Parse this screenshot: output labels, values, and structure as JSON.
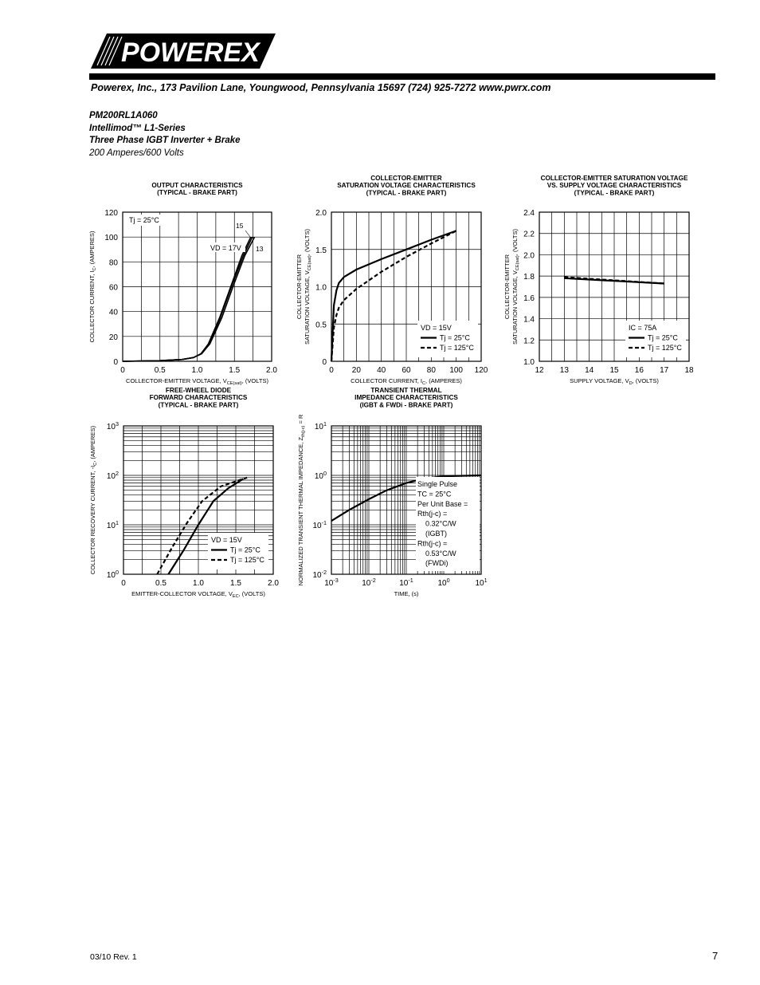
{
  "header": {
    "logo_text": "POWEREX",
    "address": "Powerex, Inc., 173 Pavilion Lane, Youngwood, Pennsylvania  15697   (724) 925-7272  www.pwrx.com"
  },
  "product": {
    "part_number": "PM200RL1A060",
    "series": "Intellimod™  L1-Series",
    "description": "Three Phase IGBT Inverter + Brake",
    "rating": "200 Amperes/600 Volts"
  },
  "footer": {
    "revision": "03/10 Rev. 1",
    "page": "7"
  },
  "chart_data": [
    {
      "id": "output",
      "type": "line",
      "title_lines": [
        "OUTPUT CHARACTERISTICS",
        "(TYPICAL - BRAKE PART)"
      ],
      "xlabel": "COLLECTOR-EMITTER VOLTAGE, V_CE(sat), (VOLTS)",
      "ylabel": "COLLECTOR CURRENT, I_C, (AMPERES)",
      "xlim": [
        0,
        2.0
      ],
      "ylim": [
        0,
        120
      ],
      "xticks": [
        "0",
        "0.5",
        "1.0",
        "1.5",
        "2.0"
      ],
      "yticks": [
        "0",
        "20",
        "40",
        "60",
        "80",
        "100",
        "120"
      ],
      "annotations": [
        "Tj = 25°C",
        "VD = 17V",
        "15",
        "13"
      ],
      "series": [
        {
          "name": "VD = 17V",
          "x": [
            0,
            0.5,
            0.8,
            0.95,
            1.05,
            1.15,
            1.3,
            1.45,
            1.6,
            1.72
          ],
          "y": [
            0,
            0.5,
            1.5,
            3,
            6,
            14,
            35,
            60,
            85,
            100
          ]
        },
        {
          "name": "15",
          "x": [
            0,
            0.5,
            0.8,
            0.95,
            1.05,
            1.16,
            1.31,
            1.46,
            1.62,
            1.74
          ],
          "y": [
            0,
            0.5,
            1.5,
            3,
            6,
            14,
            35,
            60,
            85,
            100
          ]
        },
        {
          "name": "13",
          "x": [
            0,
            0.5,
            0.8,
            0.95,
            1.06,
            1.17,
            1.33,
            1.48,
            1.64,
            1.77
          ],
          "y": [
            0,
            0.5,
            1.5,
            3,
            6,
            14,
            35,
            60,
            85,
            100
          ]
        }
      ]
    },
    {
      "id": "vce_ic",
      "type": "line",
      "title_lines": [
        "COLLECTOR-EMITTER",
        "SATURATION VOLTAGE CHARACTERISTICS",
        "(TYPICAL - BRAKE PART)"
      ],
      "xlabel": "COLLECTOR CURRENT, I_C, (AMPERES)",
      "ylabel_lines": [
        "COLLECTOR-EMITTER",
        "SATURATION VOLTAGE, V_CE(sat), (VOLTS)"
      ],
      "xlim": [
        0,
        120
      ],
      "ylim": [
        0,
        2.0
      ],
      "xticks": [
        "0",
        "20",
        "40",
        "60",
        "80",
        "100",
        "120"
      ],
      "yticks": [
        "0",
        "0.5",
        "1.0",
        "1.5",
        "2.0"
      ],
      "legend": {
        "lines": [
          "VD = 15V",
          "Tj = 25°C",
          "Tj = 125°C"
        ]
      },
      "series": [
        {
          "name": "Tj = 25°C",
          "x": [
            0,
            2,
            4,
            6,
            10,
            20,
            40,
            60,
            80,
            100
          ],
          "y": [
            0,
            0.75,
            0.95,
            1.05,
            1.13,
            1.23,
            1.37,
            1.5,
            1.63,
            1.75
          ]
        },
        {
          "name": "Tj = 125°C",
          "x": [
            0,
            2,
            4,
            6,
            10,
            20,
            40,
            60,
            80,
            100
          ],
          "y": [
            0,
            0.45,
            0.62,
            0.72,
            0.82,
            0.97,
            1.2,
            1.4,
            1.58,
            1.75
          ]
        }
      ]
    },
    {
      "id": "vce_vd",
      "type": "line",
      "title_lines": [
        "COLLECTOR-EMITTER SATURATION VOLTAGE",
        "VS. SUPPLY VOLTAGE CHARACTERISTICS",
        "(TYPICAL - BRAKE PART)"
      ],
      "xlabel": "SUPPLY VOLTAGE, V_D, (VOLTS)",
      "ylabel_lines": [
        "COLLECTOR-EMITTER",
        "SATURATION VOLTAGE, V_CE(sat), (VOLTS)"
      ],
      "xlim": [
        12,
        18
      ],
      "ylim": [
        1.0,
        2.4
      ],
      "xticks": [
        "12",
        "13",
        "14",
        "15",
        "16",
        "17",
        "18"
      ],
      "yticks": [
        "1.0",
        "1.2",
        "1.4",
        "1.6",
        "1.8",
        "2.0",
        "2.2",
        "2.4"
      ],
      "legend": {
        "lines": [
          "IC = 75A",
          "Tj = 25°C",
          "Tj = 125°C"
        ]
      },
      "series": [
        {
          "name": "Tj = 25°C",
          "x": [
            13,
            17
          ],
          "y": [
            1.78,
            1.73
          ]
        },
        {
          "name": "Tj = 125°C",
          "x": [
            13,
            17
          ],
          "y": [
            1.79,
            1.73
          ]
        }
      ]
    },
    {
      "id": "diode",
      "type": "line",
      "title_lines": [
        "FREE-WHEEL DIODE",
        "FORWARD CHARACTERISTICS",
        "(TYPICAL - BRAKE PART)"
      ],
      "xlabel": "EMITTER-COLLECTOR VOLTAGE, V_EC, (VOLTS)",
      "ylabel": "COLLECTOR RECOVERY CURRENT, -I_C, (AMPERES)",
      "xlim": [
        0,
        2.0
      ],
      "ylim_log10": [
        0,
        3
      ],
      "xticks": [
        "0",
        "0.5",
        "1.0",
        "1.5",
        "2.0"
      ],
      "yticks": [
        "10^0",
        "10^1",
        "10^2",
        "10^3"
      ],
      "legend": {
        "lines": [
          "VD = 15V",
          "Tj = 25°C",
          "Tj = 125°C"
        ]
      },
      "series": [
        {
          "name": "Tj = 25°C",
          "x": [
            0.6,
            0.8,
            1.0,
            1.2,
            1.4,
            1.6
          ],
          "y": [
            1,
            3,
            10,
            30,
            55,
            85
          ]
        },
        {
          "name": "Tj = 125°C",
          "x": [
            0.45,
            0.65,
            0.85,
            1.05,
            1.3,
            1.65
          ],
          "y": [
            1,
            3.5,
            11,
            30,
            60,
            90
          ]
        }
      ]
    },
    {
      "id": "thermal",
      "type": "line",
      "title_lines": [
        "TRANSIENT THERMAL",
        "IMPEDANCE CHARACTERISTICS",
        "(IGBT & FWDi - BRAKE PART)"
      ],
      "xlabel": "TIME, (s)",
      "ylabel": "NORMALIZED TRANSIENT THERMAL IMPEDANCE, Z_th(j-c) = R_th • (NORMALIZED VALUE)",
      "xlim_log10": [
        -3,
        1
      ],
      "ylim_log10": [
        -2,
        1
      ],
      "xticks": [
        "10^-3",
        "10^-2",
        "10^-1",
        "10^0",
        "10^1"
      ],
      "yticks": [
        "10^-2",
        "10^-1",
        "10^0",
        "10^1"
      ],
      "legend": {
        "lines": [
          "Single Pulse",
          "TC = 25°C",
          "Per Unit Base =",
          "Rth(j-c) =",
          "0.32°C/W",
          "(IGBT)",
          "Rth(j-c) =",
          "0.53°C/W",
          "(FWDi)"
        ]
      },
      "series": [
        {
          "name": "Zth",
          "x": [
            0.001,
            0.003,
            0.01,
            0.03,
            0.1,
            0.3,
            1,
            10
          ],
          "y": [
            0.12,
            0.2,
            0.33,
            0.5,
            0.7,
            0.86,
            0.96,
            1.0
          ]
        }
      ]
    }
  ]
}
